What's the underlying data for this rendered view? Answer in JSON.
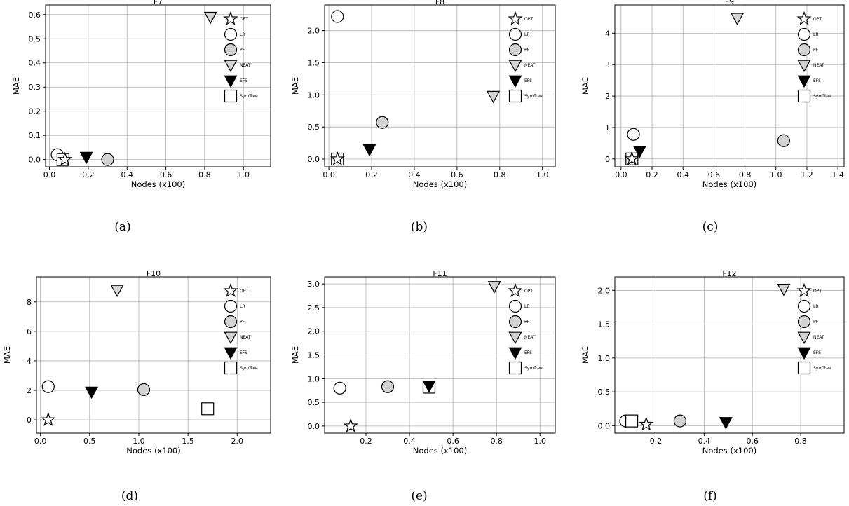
{
  "figure": {
    "xlabel": "Nodes (x100)",
    "ylabel": "MAE",
    "legend": [
      {
        "label": "OPT",
        "marker": "star",
        "fill": "#ffffff"
      },
      {
        "label": "LR",
        "marker": "circle",
        "fill": "#ffffff"
      },
      {
        "label": "PF",
        "marker": "circle",
        "fill": "#d3d3d3"
      },
      {
        "label": "NEAT",
        "marker": "triangle-down",
        "fill": "#d3d3d3"
      },
      {
        "label": "EFS",
        "marker": "triangle-down",
        "fill": "#000000"
      },
      {
        "label": "SymTree",
        "marker": "square",
        "fill": "#ffffff"
      }
    ],
    "legend_placement": "top-right",
    "grid": true
  },
  "chart_data": [
    {
      "type": "scatter",
      "title": "F7",
      "caption": "(a)",
      "xlabel": "Nodes (x100)",
      "ylabel": "MAE",
      "xlim": [
        -0.02,
        1.14
      ],
      "ylim": [
        -0.03,
        0.64
      ],
      "xticks": [
        0.0,
        0.2,
        0.4,
        0.6,
        0.8,
        1.0
      ],
      "xtick_labels": [
        "0.0",
        "0.2",
        "0.4",
        "0.6",
        "0.8",
        "1.0"
      ],
      "yticks": [
        0.0,
        0.1,
        0.2,
        0.3,
        0.4,
        0.5,
        0.6
      ],
      "ytick_labels": [
        "0.0",
        "0.1",
        "0.2",
        "0.3",
        "0.4",
        "0.5",
        "0.6"
      ],
      "points": [
        {
          "series": "LR",
          "x": 0.04,
          "y": 0.02
        },
        {
          "series": "SymTree",
          "x": 0.07,
          "y": 0.0
        },
        {
          "series": "OPT",
          "x": 0.08,
          "y": 0.0
        },
        {
          "series": "EFS",
          "x": 0.19,
          "y": 0.01
        },
        {
          "series": "PF",
          "x": 0.3,
          "y": 0.0
        },
        {
          "series": "NEAT",
          "x": 0.83,
          "y": 0.59
        }
      ]
    },
    {
      "type": "scatter",
      "title": "F8",
      "caption": "(b)",
      "xlabel": "Nodes (x100)",
      "ylabel": "MAE",
      "xlim": [
        -0.02,
        1.06
      ],
      "ylim": [
        -0.12,
        2.4
      ],
      "xticks": [
        0.0,
        0.2,
        0.4,
        0.6,
        0.8,
        1.0
      ],
      "xtick_labels": [
        "0.0",
        "0.2",
        "0.4",
        "0.6",
        "0.8",
        "1.0"
      ],
      "yticks": [
        0.0,
        0.5,
        1.0,
        1.5,
        2.0
      ],
      "ytick_labels": [
        "0.0",
        "0.5",
        "1.0",
        "1.5",
        "2.0"
      ],
      "points": [
        {
          "series": "LR",
          "x": 0.04,
          "y": 2.22
        },
        {
          "series": "SymTree",
          "x": 0.04,
          "y": 0.0
        },
        {
          "series": "OPT",
          "x": 0.04,
          "y": 0.0
        },
        {
          "series": "EFS",
          "x": 0.19,
          "y": 0.15
        },
        {
          "series": "PF",
          "x": 0.25,
          "y": 0.57
        },
        {
          "series": "NEAT",
          "x": 0.77,
          "y": 0.98
        }
      ]
    },
    {
      "type": "scatter",
      "title": "F9",
      "caption": "(c)",
      "xlabel": "Nodes (x100)",
      "ylabel": "MAE",
      "xlim": [
        -0.04,
        1.44
      ],
      "ylim": [
        -0.25,
        4.9
      ],
      "xticks": [
        0.0,
        0.2,
        0.4,
        0.6,
        0.8,
        1.0,
        1.2,
        1.4
      ],
      "xtick_labels": [
        "0.0",
        "0.2",
        "0.4",
        "0.6",
        "0.8",
        "1.0",
        "1.2",
        "1.4"
      ],
      "yticks": [
        0,
        1,
        2,
        3,
        4
      ],
      "ytick_labels": [
        "0",
        "1",
        "2",
        "3",
        "4"
      ],
      "points": [
        {
          "series": "LR",
          "x": 0.08,
          "y": 0.78
        },
        {
          "series": "SymTree",
          "x": 0.07,
          "y": 0.0
        },
        {
          "series": "OPT",
          "x": 0.07,
          "y": 0.0
        },
        {
          "series": "EFS",
          "x": 0.12,
          "y": 0.25
        },
        {
          "series": "PF",
          "x": 1.05,
          "y": 0.58
        },
        {
          "series": "NEAT",
          "x": 0.75,
          "y": 4.48
        }
      ]
    },
    {
      "type": "scatter",
      "title": "F10",
      "caption": "(d)",
      "xlabel": "Nodes (x100)",
      "ylabel": "MAE",
      "xlim": [
        -0.04,
        2.34
      ],
      "ylim": [
        -0.9,
        9.7
      ],
      "xticks": [
        0.0,
        0.5,
        1.0,
        1.5,
        2.0
      ],
      "xtick_labels": [
        "0.0",
        "0.5",
        "1.0",
        "1.5",
        "2.0"
      ],
      "yticks": [
        0,
        2,
        4,
        6,
        8
      ],
      "ytick_labels": [
        "0",
        "2",
        "4",
        "6",
        "8"
      ],
      "points": [
        {
          "series": "LR",
          "x": 0.08,
          "y": 2.25
        },
        {
          "series": "OPT",
          "x": 0.08,
          "y": 0.0
        },
        {
          "series": "EFS",
          "x": 0.52,
          "y": 1.9
        },
        {
          "series": "PF",
          "x": 1.05,
          "y": 2.05
        },
        {
          "series": "NEAT",
          "x": 0.78,
          "y": 8.8
        },
        {
          "series": "SymTree",
          "x": 1.7,
          "y": 0.75
        }
      ]
    },
    {
      "type": "scatter",
      "title": "F11",
      "caption": "(e)",
      "xlabel": "Nodes (x100)",
      "ylabel": "MAE",
      "xlim": [
        0.01,
        1.07
      ],
      "ylim": [
        -0.15,
        3.15
      ],
      "xticks": [
        0.2,
        0.4,
        0.6,
        0.8,
        1.0
      ],
      "xtick_labels": [
        "0.2",
        "0.4",
        "0.6",
        "0.8",
        "1.0"
      ],
      "yticks": [
        0.0,
        0.5,
        1.0,
        1.5,
        2.0,
        2.5,
        3.0
      ],
      "ytick_labels": [
        "0.0",
        "0.5",
        "1.0",
        "1.5",
        "2.0",
        "2.5",
        "3.0"
      ],
      "points": [
        {
          "series": "LR",
          "x": 0.08,
          "y": 0.8
        },
        {
          "series": "OPT",
          "x": 0.13,
          "y": 0.0
        },
        {
          "series": "PF",
          "x": 0.3,
          "y": 0.83
        },
        {
          "series": "SymTree",
          "x": 0.49,
          "y": 0.82
        },
        {
          "series": "EFS",
          "x": 0.49,
          "y": 0.85
        },
        {
          "series": "NEAT",
          "x": 0.79,
          "y": 2.95
        }
      ]
    },
    {
      "type": "scatter",
      "title": "F12",
      "caption": "(f)",
      "xlabel": "Nodes (x100)",
      "ylabel": "MAE",
      "xlim": [
        0.03,
        0.98
      ],
      "ylim": [
        -0.11,
        2.2
      ],
      "xticks": [
        0.2,
        0.4,
        0.6,
        0.8
      ],
      "xtick_labels": [
        "0.2",
        "0.4",
        "0.6",
        "0.8"
      ],
      "yticks": [
        0.0,
        0.5,
        1.0,
        1.5,
        2.0
      ],
      "ytick_labels": [
        "0.0",
        "0.5",
        "1.0",
        "1.5",
        "2.0"
      ],
      "points": [
        {
          "series": "LR",
          "x": 0.075,
          "y": 0.07
        },
        {
          "series": "SymTree",
          "x": 0.1,
          "y": 0.07
        },
        {
          "series": "OPT",
          "x": 0.16,
          "y": 0.02
        },
        {
          "series": "PF",
          "x": 0.3,
          "y": 0.07
        },
        {
          "series": "EFS",
          "x": 0.49,
          "y": 0.05
        },
        {
          "series": "NEAT",
          "x": 0.73,
          "y": 2.02
        }
      ]
    }
  ]
}
